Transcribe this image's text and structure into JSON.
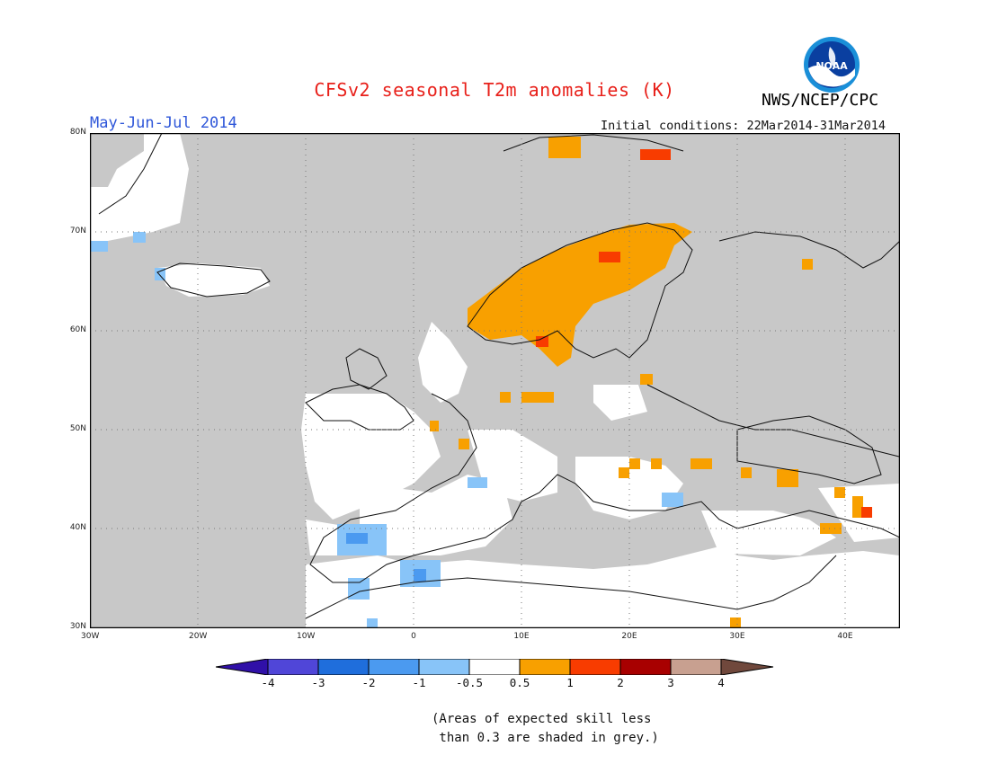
{
  "title": "CFSv2 seasonal T2m anomalies (K)",
  "period": "May-Jun-Jul 2014",
  "initial_conditions": "Initial conditions: 22Mar2014-31Mar2014",
  "agency": "NWS/NCEP/CPC",
  "logo_text": "NOAA",
  "map": {
    "lon_ticks": [
      "30W",
      "20W",
      "10W",
      "0",
      "10E",
      "20E",
      "30E",
      "40E"
    ],
    "lat_ticks": [
      "80N",
      "70N",
      "60N",
      "50N",
      "40N",
      "30N"
    ],
    "lon_range": [
      -30,
      45
    ],
    "lat_range": [
      30,
      80
    ]
  },
  "colorbar": {
    "labels": [
      "-4",
      "-3",
      "-2",
      "-1",
      "-0.5",
      "0.5",
      "1",
      "2",
      "3",
      "4"
    ],
    "colors": [
      "#3010a8",
      "#5046d8",
      "#1f6edc",
      "#4b9af0",
      "#88c4f8",
      "#ffffff",
      "#f8a000",
      "#f83c00",
      "#a80000",
      "#c8a090",
      "#70483c"
    ]
  },
  "note": "(Areas of expected skill less\n than 0.3 are shaded in grey.)"
}
